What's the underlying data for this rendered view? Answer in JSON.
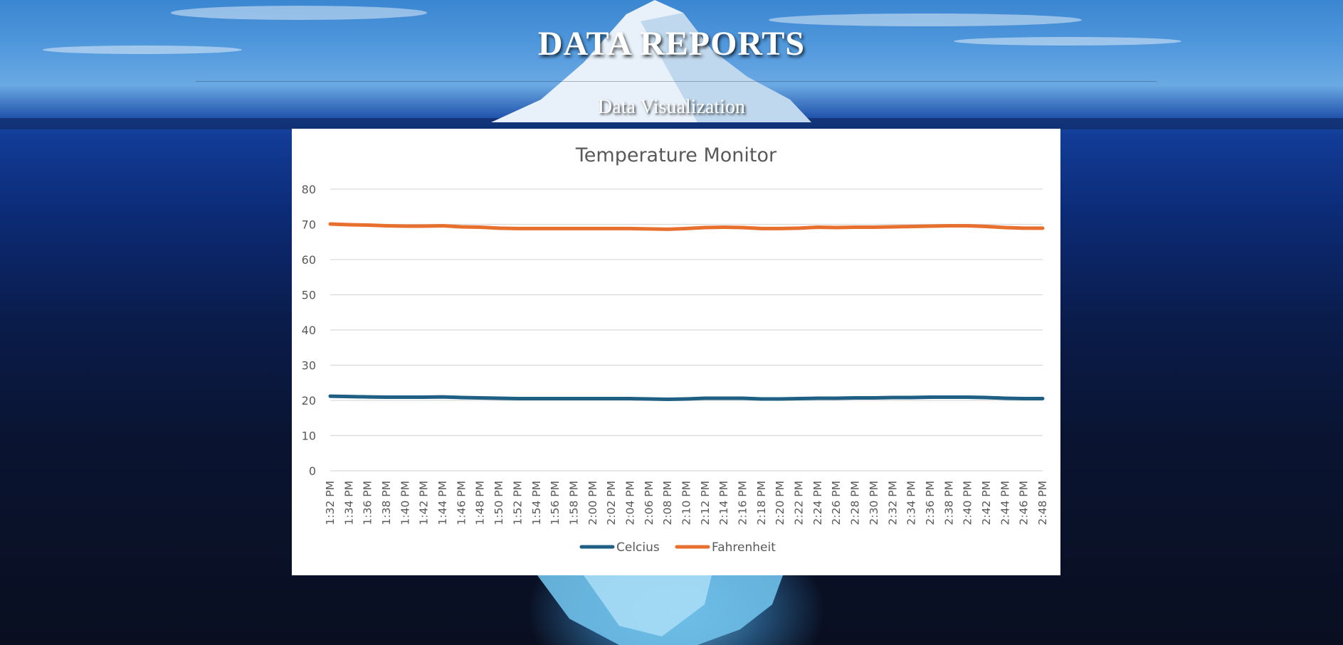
{
  "header": {
    "title": "DATA REPORTS",
    "subtitle": "Data Visualization"
  },
  "theme": {
    "celcius_color": "#1f5f84",
    "fahrenheit_color": "#e8702f",
    "gridline_color": "#d9d9d9",
    "card_background": "#ffffff"
  },
  "chart_data": {
    "type": "line",
    "title": "Temperature Monitor",
    "xlabel": "",
    "ylabel": "",
    "ylim": [
      0,
      80
    ],
    "yticks": [
      0,
      10,
      20,
      30,
      40,
      50,
      60,
      70,
      80
    ],
    "grid": true,
    "legend_position": "bottom",
    "categories": [
      "1:32 PM",
      "1:34 PM",
      "1:36 PM",
      "1:38 PM",
      "1:40 PM",
      "1:42 PM",
      "1:44 PM",
      "1:46 PM",
      "1:48 PM",
      "1:50 PM",
      "1:52 PM",
      "1:54 PM",
      "1:56 PM",
      "1:58 PM",
      "2:00 PM",
      "2:02 PM",
      "2:04 PM",
      "2:06 PM",
      "2:08 PM",
      "2:10 PM",
      "2:12 PM",
      "2:14 PM",
      "2:16 PM",
      "2:18 PM",
      "2:20 PM",
      "2:22 PM",
      "2:24 PM",
      "2:26 PM",
      "2:28 PM",
      "2:30 PM",
      "2:32 PM",
      "2:34 PM",
      "2:36 PM",
      "2:38 PM",
      "2:40 PM",
      "2:42 PM",
      "2:44 PM",
      "2:46 PM",
      "2:48 PM"
    ],
    "series": [
      {
        "name": "Celcius",
        "color": "#1f5f84",
        "values": [
          21.2,
          21.1,
          21.0,
          20.9,
          20.9,
          20.9,
          21.0,
          20.8,
          20.7,
          20.6,
          20.5,
          20.5,
          20.5,
          20.5,
          20.5,
          20.5,
          20.5,
          20.4,
          20.3,
          20.4,
          20.6,
          20.6,
          20.6,
          20.4,
          20.4,
          20.5,
          20.6,
          20.6,
          20.7,
          20.7,
          20.8,
          20.8,
          20.9,
          20.9,
          20.9,
          20.8,
          20.6,
          20.5,
          20.5
        ]
      },
      {
        "name": "Fahrenheit",
        "color": "#e8702f",
        "values": [
          70.1,
          69.9,
          69.8,
          69.6,
          69.5,
          69.5,
          69.6,
          69.3,
          69.2,
          68.9,
          68.8,
          68.8,
          68.8,
          68.8,
          68.8,
          68.8,
          68.8,
          68.7,
          68.6,
          68.8,
          69.1,
          69.2,
          69.1,
          68.8,
          68.8,
          68.9,
          69.2,
          69.1,
          69.2,
          69.2,
          69.3,
          69.4,
          69.5,
          69.6,
          69.6,
          69.4,
          69.1,
          68.9,
          68.9
        ]
      }
    ]
  }
}
